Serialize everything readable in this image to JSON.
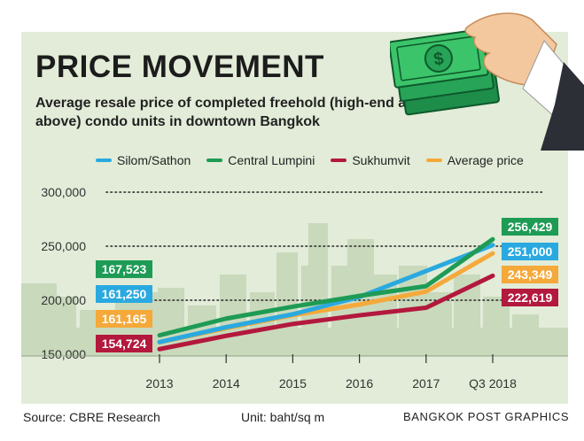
{
  "title": "PRICE MOVEMENT",
  "subtitle": "Average resale price of completed freehold (high-end and above) condo units in downtown Bangkok",
  "footer": {
    "source": "Source: CBRE Research",
    "unit": "Unit: baht/sq m",
    "credit": "BANGKOK POST GRAPHICS"
  },
  "colors": {
    "background": "#e2ecd8",
    "skyline": "#c9d9bc"
  },
  "illustration": {
    "icon": "hand-holding-money-icon"
  },
  "chart_data": {
    "type": "line",
    "x": [
      "2013",
      "2014",
      "2015",
      "2016",
      "2017",
      "Q3 2018"
    ],
    "ylim": [
      150000,
      300000
    ],
    "yticks": [
      150000,
      200000,
      250000,
      300000
    ],
    "ytick_labels": [
      "150,000",
      "200,000",
      "250,000",
      "300,000"
    ],
    "grid": "dotted",
    "legend": "top",
    "series": [
      {
        "name": "Silom/Sathon",
        "color": "#2aa9e0",
        "values": [
          161250,
          175000,
          187000,
          203000,
          227000,
          251000
        ],
        "start_label": "161,250",
        "end_label": "251,000"
      },
      {
        "name": "Central Lumpini",
        "color": "#1e9b55",
        "values": [
          167523,
          183000,
          194000,
          204000,
          213000,
          256429
        ],
        "start_label": "167,523",
        "end_label": "256,429"
      },
      {
        "name": "Sukhumvit",
        "color": "#b3183d",
        "values": [
          154724,
          167000,
          178000,
          186000,
          193000,
          222619
        ],
        "start_label": "154,724",
        "end_label": "222,619"
      },
      {
        "name": "Average price",
        "color": "#f5a93a",
        "values": [
          161165,
          174000,
          186000,
          196000,
          208000,
          243349
        ],
        "start_label": "161,165",
        "end_label": "243,349"
      }
    ]
  }
}
